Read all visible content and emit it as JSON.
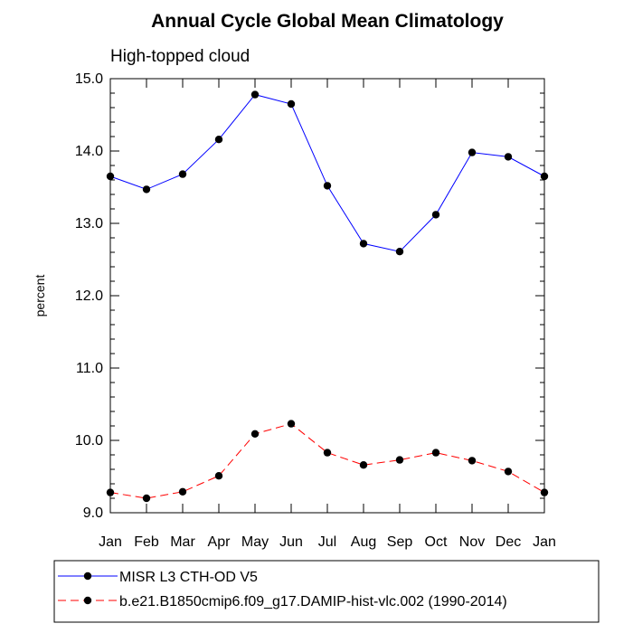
{
  "chart_data": {
    "type": "line",
    "title": "Annual Cycle Global Mean Climatology",
    "subtitle": "High-topped cloud",
    "ylabel": "percent",
    "xlabel": "",
    "categories": [
      "Jan",
      "Feb",
      "Mar",
      "Apr",
      "May",
      "Jun",
      "Jul",
      "Aug",
      "Sep",
      "Oct",
      "Nov",
      "Dec",
      "Jan"
    ],
    "ylim": [
      9.0,
      15.0
    ],
    "yticks": [
      9.0,
      10.0,
      11.0,
      12.0,
      13.0,
      14.0,
      15.0
    ],
    "ytick_labels": [
      "9.0",
      "10.0",
      "11.0",
      "12.0",
      "13.0",
      "14.0",
      "15.0"
    ],
    "grid": false,
    "legend_position": "bottom",
    "series": [
      {
        "name": "MISR L3 CTH-OD V5",
        "color": "#0000ff",
        "line_style": "solid",
        "values": [
          13.65,
          13.47,
          13.68,
          14.16,
          14.78,
          14.65,
          13.52,
          12.72,
          12.61,
          13.12,
          13.98,
          13.92,
          13.65
        ]
      },
      {
        "name": "b.e21.B1850cmip6.f09_g17.DAMIP-hist-vlc.002 (1990-2014)",
        "color": "#ff0000",
        "line_style": "dashed",
        "values": [
          9.28,
          9.2,
          9.29,
          9.51,
          10.09,
          10.23,
          9.83,
          9.66,
          9.73,
          9.83,
          9.72,
          9.57,
          9.28
        ]
      }
    ]
  }
}
